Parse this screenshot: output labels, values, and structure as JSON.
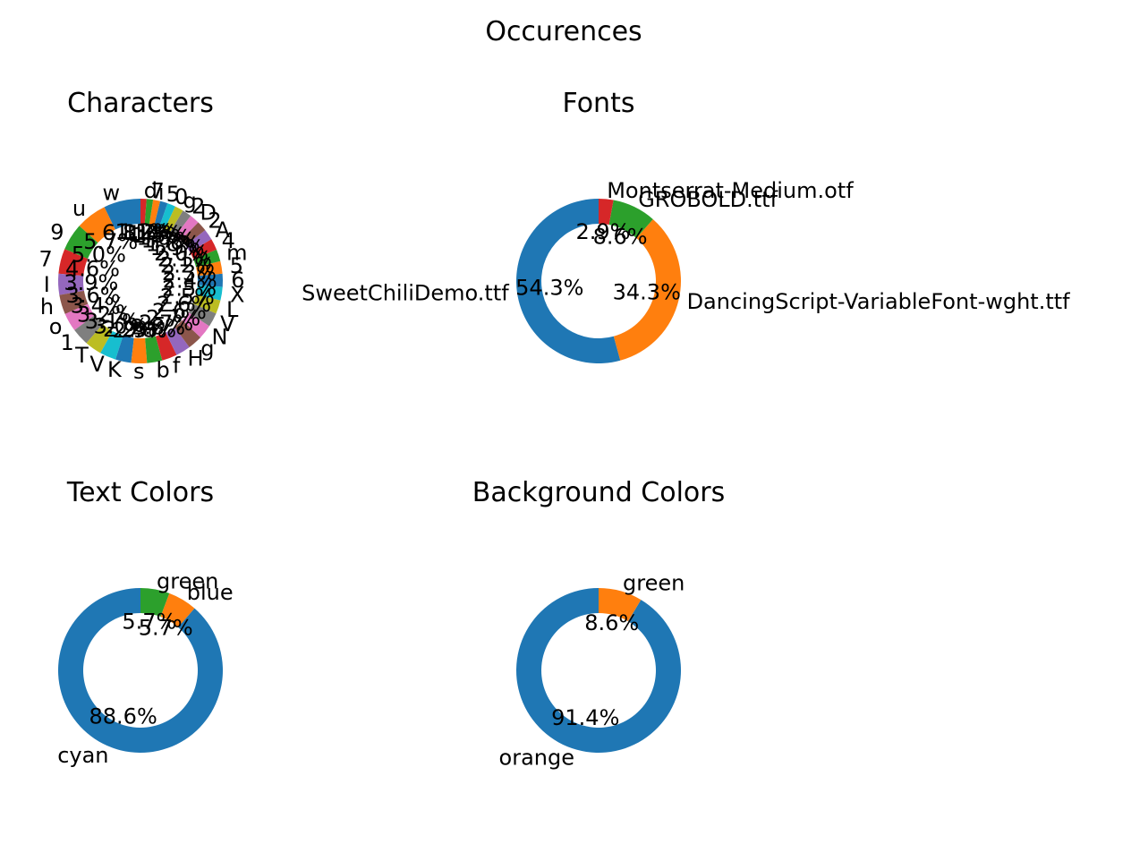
{
  "suptitle": "Occurences",
  "palette": [
    "#1f77b4",
    "#ff7f0e",
    "#2ca02c",
    "#d62728",
    "#9467bd",
    "#8c564b",
    "#e377c2",
    "#7f7f7f",
    "#bcbd22",
    "#17becf"
  ],
  "chart_data": [
    {
      "type": "pie",
      "title": "Characters",
      "labels": [
        "w",
        "u",
        "9",
        "7",
        "I",
        "h",
        "o",
        "1",
        "T",
        "V",
        "K",
        "s",
        "b",
        "f",
        "H",
        "g",
        "N",
        "V",
        "L",
        "X",
        "6",
        "5",
        "m",
        "4",
        "A",
        "2",
        "D",
        "2",
        "g",
        "0",
        "5",
        "i",
        "7",
        "d"
      ],
      "values": [
        6.8,
        5.7,
        5.0,
        4.6,
        3.9,
        3.6,
        3.4,
        3.2,
        3.1,
        3.0,
        2.9,
        2.9,
        2.8,
        2.8,
        2.7,
        2.7,
        2.6,
        2.6,
        2.5,
        2.5,
        2.4,
        2.3,
        2.2,
        2.1,
        2.0,
        1.9,
        1.8,
        1.7,
        1.6,
        1.5,
        1.4,
        1.3,
        1.2,
        1.1
      ],
      "show_pct": [
        true,
        true,
        true,
        true,
        true,
        true,
        true,
        true,
        true,
        true,
        true,
        true,
        true,
        true,
        true,
        true,
        true,
        true,
        true,
        true,
        true,
        true,
        true,
        true,
        true,
        true,
        true,
        true,
        true,
        true,
        true,
        true,
        true,
        true
      ]
    },
    {
      "type": "pie",
      "title": "Fonts",
      "labels": [
        "SweetChiliDemo.ttf",
        "DancingScript-VariableFont-wght.ttf",
        "GROBOLD.ttf",
        "Montserrat-Medium.otf"
      ],
      "values": [
        54.3,
        34.3,
        8.6,
        2.9
      ]
    },
    {
      "type": "pie",
      "title": "Text Colors",
      "labels": [
        "cyan",
        "blue",
        "green"
      ],
      "values": [
        88.6,
        5.7,
        5.7
      ]
    },
    {
      "type": "pie",
      "title": "Background Colors",
      "labels": [
        "orange",
        "green"
      ],
      "values": [
        91.4,
        8.6
      ]
    }
  ]
}
